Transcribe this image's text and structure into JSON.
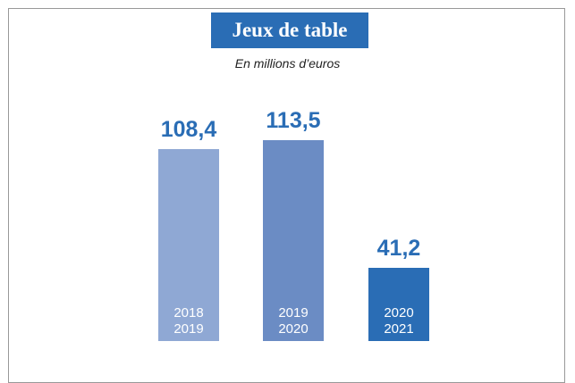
{
  "chart_data": {
    "type": "bar",
    "title": "Jeux de table",
    "subtitle": "En millions d’euros",
    "categories": [
      "2018\n2019",
      "2019\n2020",
      "2020\n2021"
    ],
    "values": [
      108.4,
      113.5,
      41.2
    ],
    "value_labels": [
      "108,4",
      "113,5",
      "41,2"
    ],
    "colors": [
      "#8fa8d4",
      "#6b8cc4",
      "#2a6db5"
    ],
    "label_color": "#2a6db5"
  }
}
